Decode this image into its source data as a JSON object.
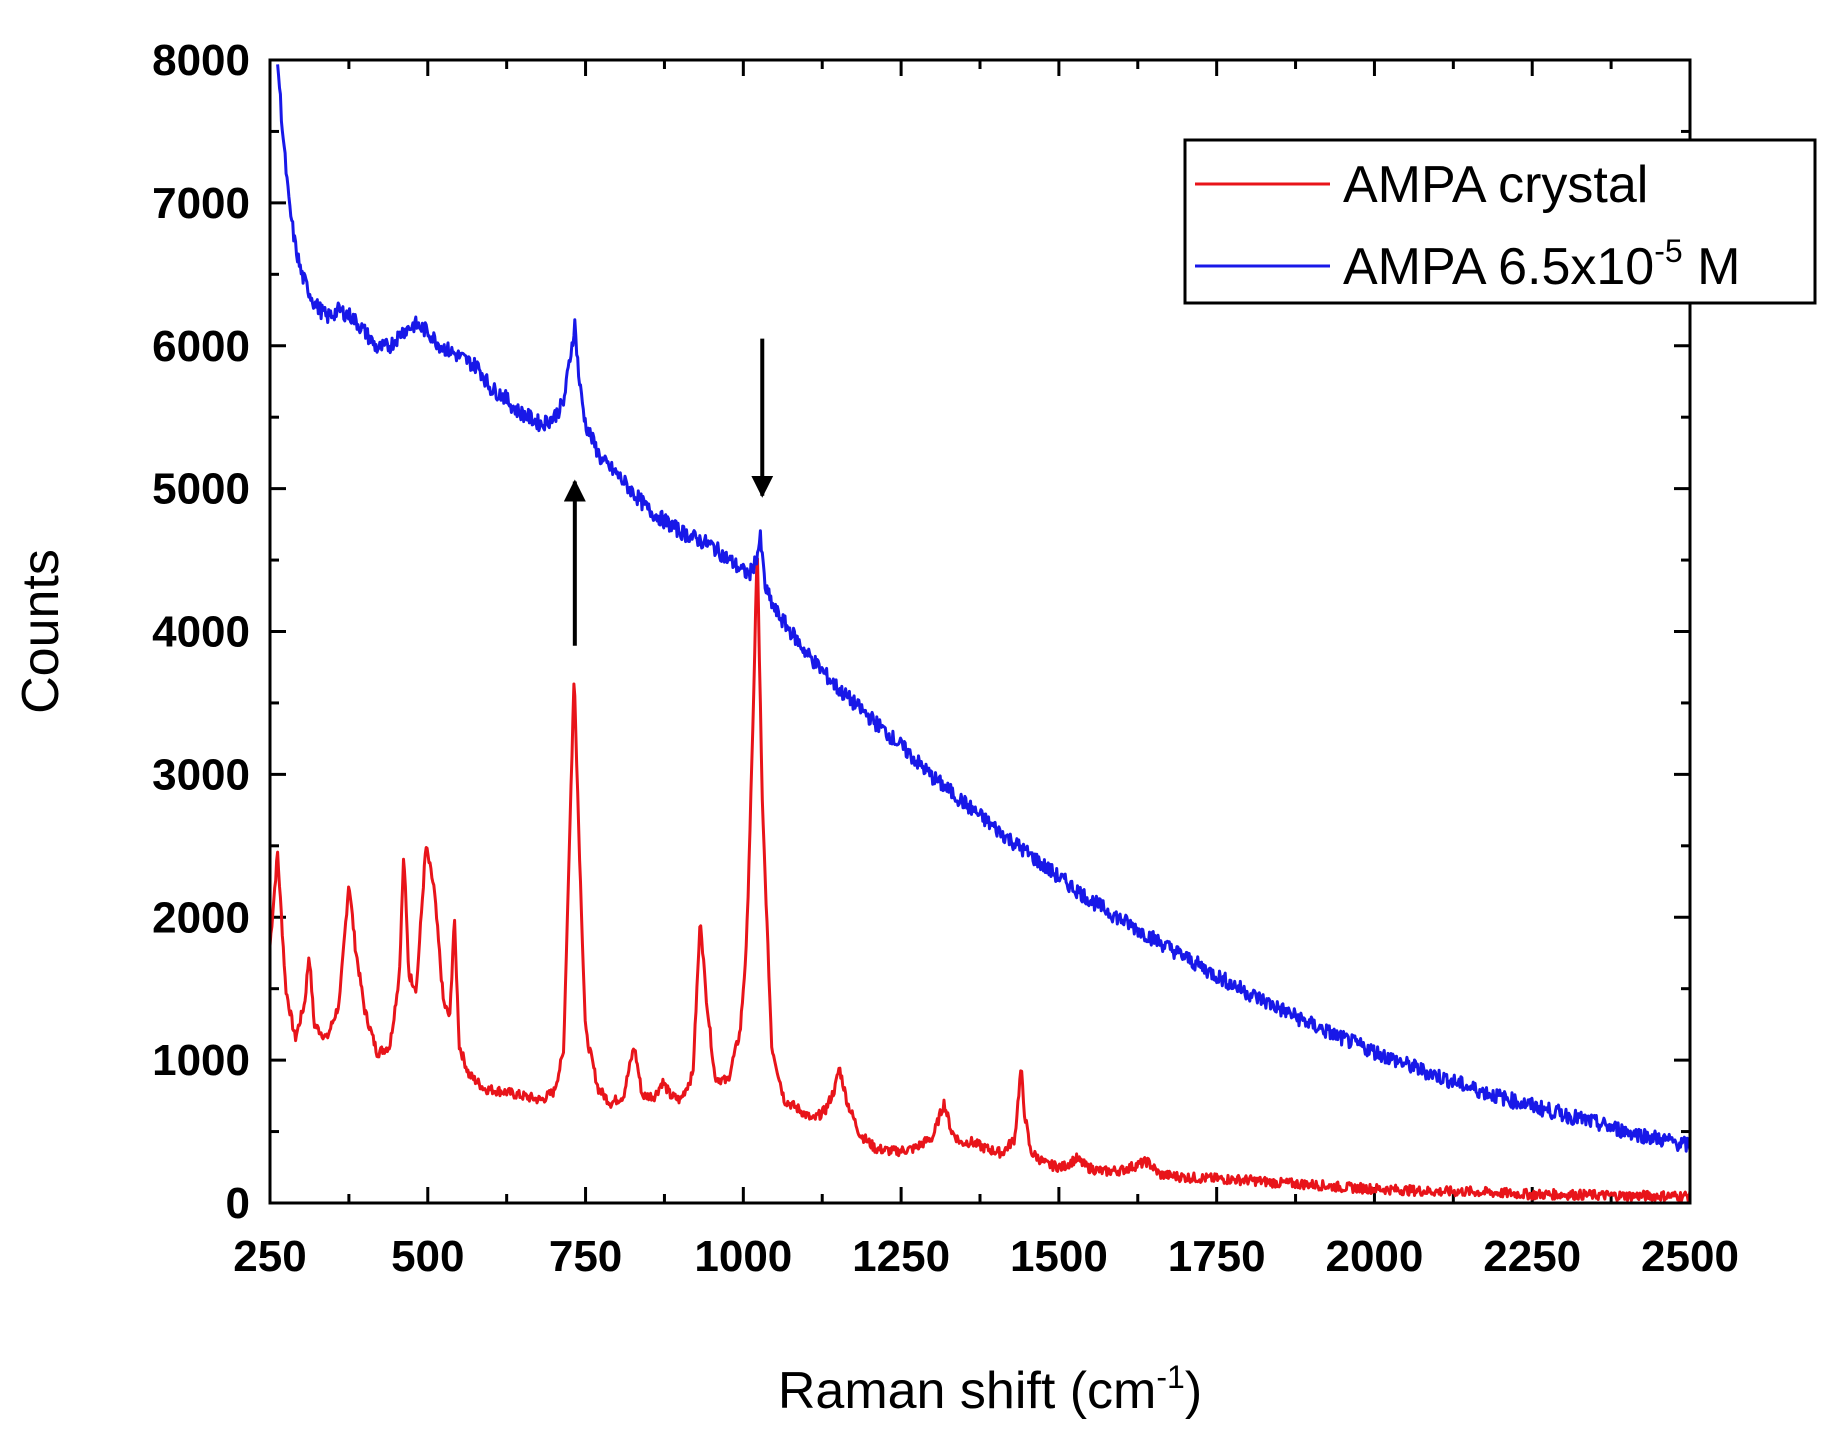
{
  "chart_data": {
    "type": "line",
    "title": "",
    "xlabel": "Raman shift (cm",
    "xlabel_sup": "-1",
    "xlabel_close": ")",
    "ylabel": "Counts",
    "xlim": [
      250,
      2500
    ],
    "ylim": [
      0,
      8000
    ],
    "xticks": [
      250,
      500,
      750,
      1000,
      1250,
      1500,
      1750,
      2000,
      2250,
      2500
    ],
    "yticks": [
      0,
      1000,
      2000,
      3000,
      4000,
      5000,
      6000,
      7000,
      8000
    ],
    "xtick_labels": [
      "250",
      "500",
      "750",
      "1000",
      "1250",
      "1500",
      "1750",
      "2000",
      "2250",
      "2500"
    ],
    "ytick_labels": [
      "0",
      "1000",
      "2000",
      "3000",
      "4000",
      "5000",
      "6000",
      "7000",
      "8000"
    ],
    "legend_position": "top-right",
    "series": [
      {
        "name": "AMPA crystal",
        "color": "#e8141a",
        "x": [
          250,
          262,
          275,
          290,
          305,
          312,
          320,
          340,
          360,
          375,
          385,
          400,
          420,
          440,
          455,
          462,
          470,
          482,
          497,
          510,
          525,
          535,
          542,
          550,
          565,
          590,
          620,
          650,
          680,
          700,
          715,
          725,
          732,
          740,
          750,
          770,
          790,
          810,
          827,
          840,
          860,
          872,
          885,
          900,
          920,
          932,
          940,
          955,
          975,
          995,
          1005,
          1015,
          1022,
          1030,
          1045,
          1065,
          1090,
          1110,
          1130,
          1145,
          1152,
          1165,
          1185,
          1210,
          1240,
          1270,
          1300,
          1318,
          1330,
          1345,
          1360,
          1385,
          1410,
          1430,
          1440,
          1445,
          1455,
          1480,
          1505,
          1528,
          1545,
          1570,
          1600,
          1640,
          1660,
          1700,
          1750,
          1800,
          1850,
          1900,
          1950,
          2000,
          2050,
          2100,
          2150,
          2200,
          2250,
          2300,
          2350,
          2400,
          2450,
          2500
        ],
        "values": [
          1800,
          2450,
          1500,
          1150,
          1400,
          1750,
          1250,
          1150,
          1400,
          2250,
          1800,
          1350,
          1050,
          1100,
          1600,
          2450,
          1600,
          1500,
          2500,
          2200,
          1400,
          1300,
          2000,
          1100,
          900,
          800,
          780,
          750,
          720,
          780,
          1050,
          2600,
          3700,
          2500,
          1200,
          800,
          700,
          750,
          1100,
          750,
          750,
          850,
          750,
          720,
          900,
          2000,
          1500,
          880,
          850,
          1200,
          1800,
          3300,
          4600,
          2800,
          1100,
          720,
          650,
          580,
          650,
          800,
          950,
          700,
          480,
          380,
          360,
          380,
          460,
          700,
          500,
          420,
          430,
          380,
          350,
          450,
          950,
          650,
          360,
          270,
          250,
          310,
          250,
          220,
          230,
          290,
          200,
          180,
          170,
          160,
          140,
          130,
          110,
          100,
          90,
          80,
          80,
          70,
          60,
          60,
          55,
          50,
          50,
          50
        ]
      },
      {
        "name": "AMPA 6.5x10",
        "name_sup": "-5",
        "name_suffix": " M",
        "color": "#1818e8",
        "x": [
          262,
          270,
          280,
          290,
          300,
          320,
          340,
          360,
          380,
          400,
          420,
          440,
          460,
          480,
          500,
          520,
          540,
          560,
          580,
          600,
          620,
          640,
          660,
          680,
          700,
          715,
          725,
          733,
          740,
          750,
          775,
          800,
          850,
          900,
          950,
          1000,
          1010,
          1020,
          1027,
          1035,
          1050,
          1100,
          1150,
          1200,
          1250,
          1300,
          1350,
          1400,
          1450,
          1500,
          1550,
          1600,
          1650,
          1700,
          1750,
          1800,
          1850,
          1900,
          1950,
          2000,
          2050,
          2100,
          2150,
          2200,
          2250,
          2300,
          2350,
          2400,
          2450,
          2500
        ],
        "values": [
          8000,
          7500,
          7000,
          6700,
          6500,
          6300,
          6200,
          6250,
          6200,
          6100,
          5980,
          6000,
          6100,
          6150,
          6100,
          6000,
          5950,
          5900,
          5850,
          5700,
          5650,
          5550,
          5500,
          5450,
          5500,
          5600,
          5900,
          6150,
          5750,
          5450,
          5200,
          5100,
          4850,
          4700,
          4600,
          4420,
          4400,
          4500,
          4650,
          4300,
          4150,
          3850,
          3600,
          3400,
          3200,
          2980,
          2800,
          2620,
          2450,
          2280,
          2120,
          1980,
          1850,
          1720,
          1590,
          1470,
          1360,
          1250,
          1150,
          1060,
          970,
          890,
          810,
          740,
          680,
          620,
          560,
          500,
          450,
          400
        ]
      }
    ],
    "annotations": [
      {
        "type": "arrow-up",
        "x": 733,
        "y_from": 3900,
        "y_to": 5050
      },
      {
        "type": "arrow-down",
        "x": 1030,
        "y_from": 6050,
        "y_to": 4950
      }
    ]
  }
}
